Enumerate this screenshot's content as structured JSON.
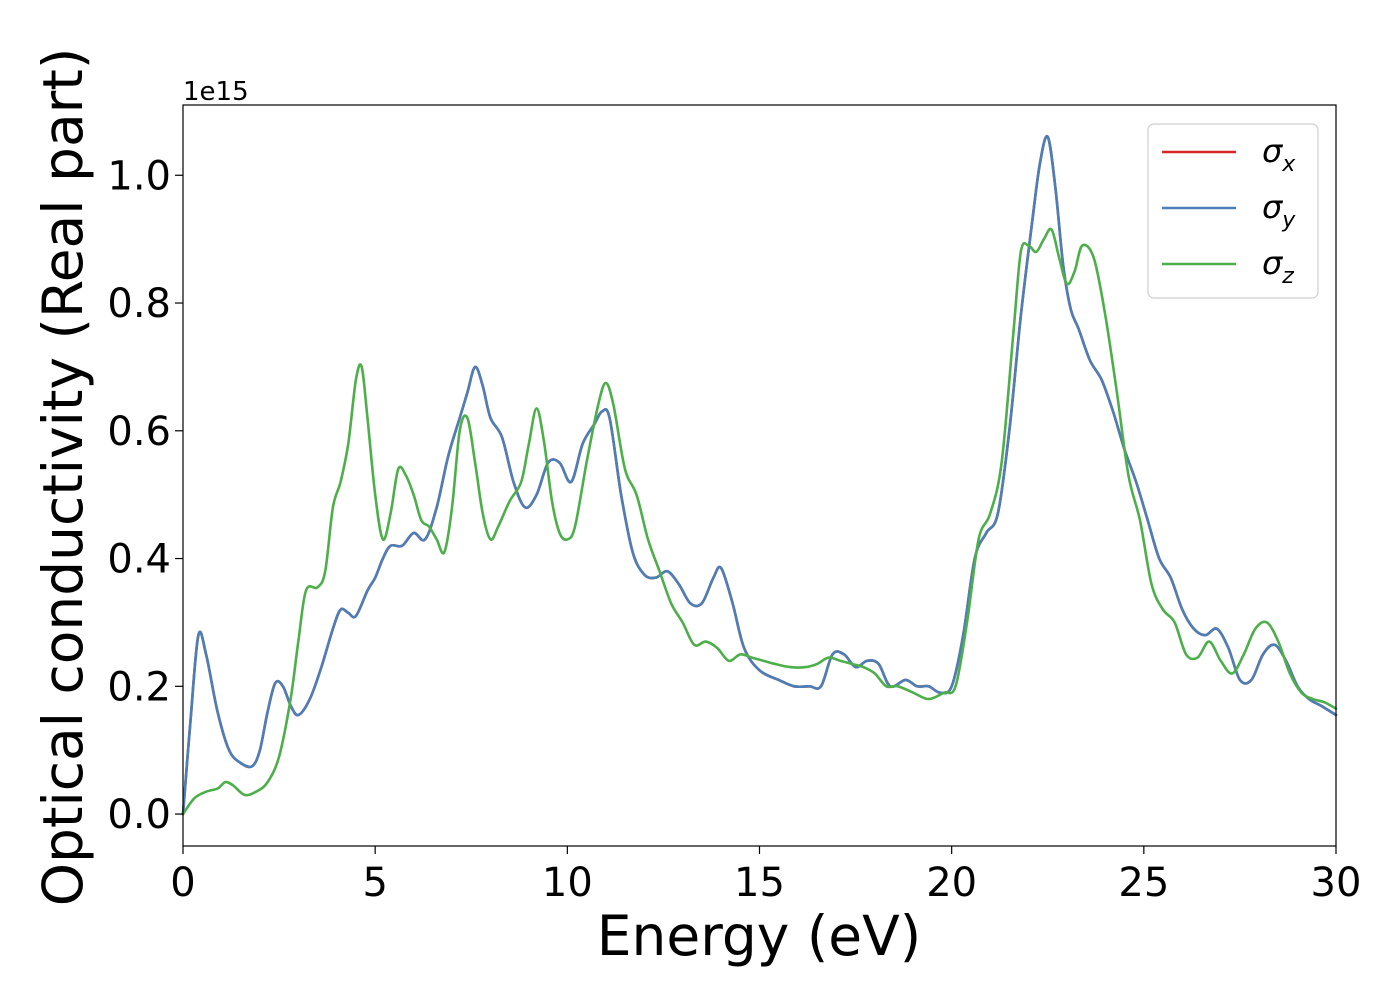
{
  "chart_data": {
    "type": "line",
    "title": "",
    "xlabel": "Energy (eV)",
    "ylabel": "Optical conductivity (Real part)",
    "y_offset_label": "1e15",
    "xlim": [
      0,
      30
    ],
    "ylim": [
      -0.05,
      1.11
    ],
    "x_ticks": [
      0,
      5,
      10,
      15,
      20,
      25,
      30
    ],
    "x_tick_labels": [
      "0",
      "5",
      "10",
      "15",
      "20",
      "25",
      "30"
    ],
    "y_ticks": [
      0.0,
      0.2,
      0.4,
      0.6,
      0.8,
      1.0
    ],
    "y_tick_labels": [
      "0.0",
      "0.2",
      "0.4",
      "0.6",
      "0.8",
      "1.0"
    ],
    "grid": false,
    "legend_position": "top-right",
    "series": [
      {
        "name": "σx",
        "base": "σ",
        "sub": "x",
        "color": "#d62728",
        "x": [
          0,
          0.2,
          0.4,
          0.6,
          0.9,
          1.2,
          1.5,
          1.8,
          2.0,
          2.2,
          2.4,
          2.6,
          2.8,
          3.0,
          3.3,
          3.6,
          3.9,
          4.1,
          4.3,
          4.5,
          4.8,
          5.0,
          5.2,
          5.4,
          5.7,
          6.0,
          6.3,
          6.6,
          6.9,
          7.2,
          7.4,
          7.6,
          7.8,
          8.0,
          8.3,
          8.6,
          8.9,
          9.2,
          9.5,
          9.8,
          10.1,
          10.4,
          10.7,
          10.9,
          11.1,
          11.4,
          11.7,
          12.0,
          12.3,
          12.6,
          12.9,
          13.2,
          13.5,
          13.8,
          14.0,
          14.3,
          14.6,
          15.0,
          15.5,
          15.9,
          16.3,
          16.6,
          16.9,
          17.2,
          17.5,
          17.8,
          18.1,
          18.4,
          18.8,
          19.1,
          19.4,
          19.7,
          20.0,
          20.3,
          20.6,
          20.9,
          21.2,
          21.5,
          21.8,
          22.1,
          22.3,
          22.5,
          22.7,
          22.9,
          23.1,
          23.3,
          23.6,
          23.9,
          24.2,
          24.5,
          24.8,
          25.1,
          25.4,
          25.7,
          26.0,
          26.3,
          26.6,
          26.9,
          27.2,
          27.5,
          27.8,
          28.1,
          28.4,
          28.7,
          29.0,
          29.3,
          29.6,
          30.0
        ],
        "y": [
          0.0,
          0.15,
          0.28,
          0.25,
          0.16,
          0.1,
          0.08,
          0.075,
          0.1,
          0.16,
          0.205,
          0.2,
          0.17,
          0.155,
          0.18,
          0.23,
          0.29,
          0.32,
          0.315,
          0.31,
          0.35,
          0.37,
          0.4,
          0.42,
          0.42,
          0.44,
          0.43,
          0.48,
          0.56,
          0.62,
          0.66,
          0.7,
          0.67,
          0.62,
          0.59,
          0.52,
          0.48,
          0.5,
          0.55,
          0.55,
          0.52,
          0.58,
          0.61,
          0.63,
          0.62,
          0.5,
          0.41,
          0.375,
          0.37,
          0.38,
          0.36,
          0.33,
          0.33,
          0.37,
          0.385,
          0.33,
          0.26,
          0.225,
          0.21,
          0.2,
          0.2,
          0.2,
          0.25,
          0.25,
          0.23,
          0.24,
          0.235,
          0.2,
          0.21,
          0.2,
          0.2,
          0.19,
          0.2,
          0.28,
          0.4,
          0.44,
          0.47,
          0.6,
          0.78,
          0.93,
          1.02,
          1.06,
          0.98,
          0.86,
          0.79,
          0.76,
          0.71,
          0.68,
          0.63,
          0.57,
          0.52,
          0.46,
          0.4,
          0.37,
          0.32,
          0.29,
          0.28,
          0.29,
          0.26,
          0.21,
          0.21,
          0.25,
          0.265,
          0.24,
          0.2,
          0.18,
          0.17,
          0.155
        ]
      },
      {
        "name": "σy",
        "base": "σ",
        "sub": "y",
        "color": "#4a7fb8",
        "x": [
          0,
          0.2,
          0.4,
          0.6,
          0.9,
          1.2,
          1.5,
          1.8,
          2.0,
          2.2,
          2.4,
          2.6,
          2.8,
          3.0,
          3.3,
          3.6,
          3.9,
          4.1,
          4.3,
          4.5,
          4.8,
          5.0,
          5.2,
          5.4,
          5.7,
          6.0,
          6.3,
          6.6,
          6.9,
          7.2,
          7.4,
          7.6,
          7.8,
          8.0,
          8.3,
          8.6,
          8.9,
          9.2,
          9.5,
          9.8,
          10.1,
          10.4,
          10.7,
          10.9,
          11.1,
          11.4,
          11.7,
          12.0,
          12.3,
          12.6,
          12.9,
          13.2,
          13.5,
          13.8,
          14.0,
          14.3,
          14.6,
          15.0,
          15.5,
          15.9,
          16.3,
          16.6,
          16.9,
          17.2,
          17.5,
          17.8,
          18.1,
          18.4,
          18.8,
          19.1,
          19.4,
          19.7,
          20.0,
          20.3,
          20.6,
          20.9,
          21.2,
          21.5,
          21.8,
          22.1,
          22.3,
          22.5,
          22.7,
          22.9,
          23.1,
          23.3,
          23.6,
          23.9,
          24.2,
          24.5,
          24.8,
          25.1,
          25.4,
          25.7,
          26.0,
          26.3,
          26.6,
          26.9,
          27.2,
          27.5,
          27.8,
          28.1,
          28.4,
          28.7,
          29.0,
          29.3,
          29.6,
          30.0
        ],
        "y": [
          0.0,
          0.15,
          0.28,
          0.25,
          0.16,
          0.1,
          0.08,
          0.075,
          0.1,
          0.16,
          0.205,
          0.2,
          0.17,
          0.155,
          0.18,
          0.23,
          0.29,
          0.32,
          0.315,
          0.31,
          0.35,
          0.37,
          0.4,
          0.42,
          0.42,
          0.44,
          0.43,
          0.48,
          0.56,
          0.62,
          0.66,
          0.7,
          0.67,
          0.62,
          0.59,
          0.52,
          0.48,
          0.5,
          0.55,
          0.55,
          0.52,
          0.58,
          0.61,
          0.63,
          0.62,
          0.5,
          0.41,
          0.375,
          0.37,
          0.38,
          0.36,
          0.33,
          0.33,
          0.37,
          0.385,
          0.33,
          0.26,
          0.225,
          0.21,
          0.2,
          0.2,
          0.2,
          0.25,
          0.25,
          0.23,
          0.24,
          0.235,
          0.2,
          0.21,
          0.2,
          0.2,
          0.19,
          0.2,
          0.28,
          0.4,
          0.44,
          0.47,
          0.6,
          0.78,
          0.93,
          1.02,
          1.06,
          0.98,
          0.86,
          0.79,
          0.76,
          0.71,
          0.68,
          0.63,
          0.57,
          0.52,
          0.46,
          0.4,
          0.37,
          0.32,
          0.29,
          0.28,
          0.29,
          0.26,
          0.21,
          0.21,
          0.25,
          0.265,
          0.24,
          0.2,
          0.18,
          0.17,
          0.155
        ]
      },
      {
        "name": "σz",
        "base": "σ",
        "sub": "z",
        "color": "#4daf4a",
        "x": [
          0,
          0.3,
          0.6,
          0.9,
          1.1,
          1.3,
          1.6,
          1.9,
          2.2,
          2.5,
          2.8,
          3.0,
          3.2,
          3.5,
          3.7,
          3.9,
          4.1,
          4.3,
          4.5,
          4.65,
          4.8,
          5.0,
          5.2,
          5.4,
          5.6,
          5.8,
          6.0,
          6.2,
          6.4,
          6.6,
          6.8,
          7.0,
          7.2,
          7.4,
          7.6,
          7.8,
          8.0,
          8.2,
          8.5,
          8.8,
          9.0,
          9.2,
          9.4,
          9.6,
          9.8,
          10.0,
          10.2,
          10.5,
          10.8,
          11.0,
          11.2,
          11.5,
          11.8,
          12.1,
          12.4,
          12.7,
          13.0,
          13.3,
          13.6,
          13.9,
          14.2,
          14.5,
          14.8,
          15.1,
          15.4,
          15.8,
          16.2,
          16.5,
          16.8,
          17.1,
          17.4,
          17.7,
          18.0,
          18.3,
          18.6,
          19.0,
          19.4,
          19.8,
          20.1,
          20.4,
          20.7,
          21.0,
          21.3,
          21.6,
          21.8,
          22.0,
          22.2,
          22.4,
          22.6,
          22.8,
          23.0,
          23.2,
          23.4,
          23.7,
          24.0,
          24.3,
          24.6,
          24.9,
          25.2,
          25.5,
          25.8,
          26.1,
          26.4,
          26.7,
          27.0,
          27.3,
          27.6,
          27.9,
          28.2,
          28.5,
          28.8,
          29.1,
          29.4,
          29.7,
          30.0
        ],
        "y": [
          0.0,
          0.025,
          0.035,
          0.04,
          0.05,
          0.045,
          0.03,
          0.035,
          0.05,
          0.09,
          0.18,
          0.27,
          0.35,
          0.355,
          0.38,
          0.48,
          0.52,
          0.58,
          0.68,
          0.7,
          0.62,
          0.5,
          0.43,
          0.47,
          0.54,
          0.53,
          0.5,
          0.46,
          0.45,
          0.43,
          0.41,
          0.48,
          0.6,
          0.62,
          0.55,
          0.47,
          0.43,
          0.45,
          0.49,
          0.52,
          0.58,
          0.635,
          0.58,
          0.49,
          0.44,
          0.43,
          0.45,
          0.55,
          0.64,
          0.675,
          0.64,
          0.54,
          0.5,
          0.43,
          0.38,
          0.33,
          0.3,
          0.265,
          0.27,
          0.26,
          0.24,
          0.25,
          0.245,
          0.24,
          0.235,
          0.23,
          0.23,
          0.235,
          0.245,
          0.24,
          0.235,
          0.23,
          0.22,
          0.2,
          0.2,
          0.19,
          0.18,
          0.19,
          0.2,
          0.3,
          0.43,
          0.47,
          0.55,
          0.75,
          0.88,
          0.89,
          0.88,
          0.9,
          0.915,
          0.87,
          0.83,
          0.85,
          0.89,
          0.87,
          0.78,
          0.66,
          0.53,
          0.46,
          0.36,
          0.32,
          0.3,
          0.25,
          0.245,
          0.27,
          0.24,
          0.22,
          0.25,
          0.29,
          0.3,
          0.27,
          0.22,
          0.19,
          0.18,
          0.175,
          0.165
        ]
      }
    ]
  }
}
